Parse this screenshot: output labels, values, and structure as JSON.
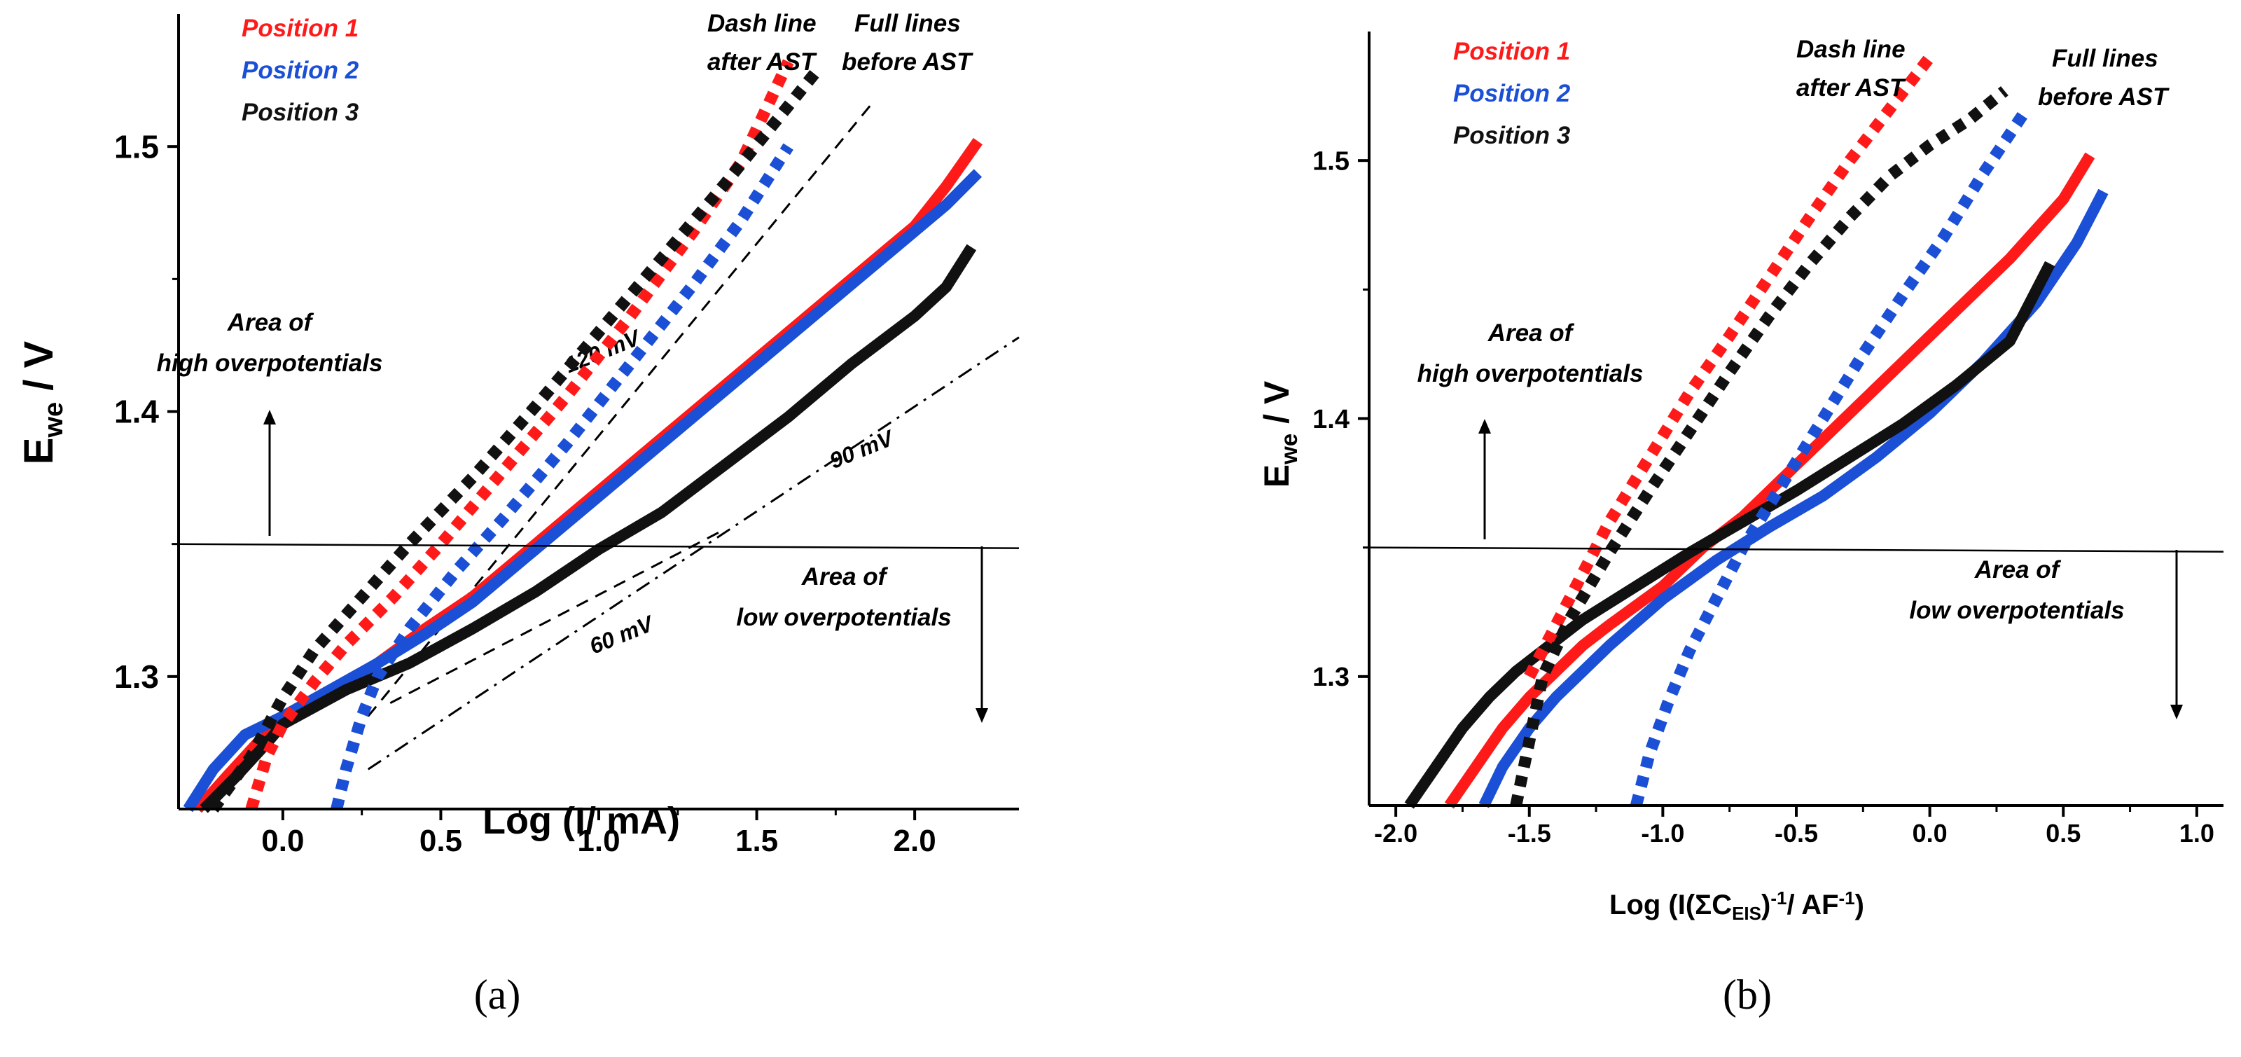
{
  "chart_data": [
    {
      "id": "a",
      "type": "line",
      "caption": "(a)",
      "xlabel": "Log (I/ mA)",
      "ylabel_main": "E",
      "ylabel_sub": "we",
      "ylabel_tail": " / V",
      "xlim": [
        -0.33,
        2.33
      ],
      "ylim": [
        1.25,
        1.55
      ],
      "xticks": [
        0.0,
        0.5,
        1.0,
        1.5,
        2.0
      ],
      "xtick_labels": [
        "0.0",
        "0.5",
        "1.0",
        "1.5",
        "2.0"
      ],
      "yticks": [
        1.3,
        1.4,
        1.5
      ],
      "ytick_labels": [
        "1.3",
        "1.4",
        "1.5"
      ],
      "legend": [
        {
          "label": "Position 1",
          "color": "#ff1a1a"
        },
        {
          "label": "Position 2",
          "color": "#1a4fd6"
        },
        {
          "label": "Position 3",
          "color": "#111111"
        }
      ],
      "notes": {
        "dash_line_1": "Dash line",
        "dash_line_2": "after AST",
        "full_lines_1": "Full lines",
        "full_lines_2": "before AST",
        "high_area_1": "Area of",
        "high_area_2": "high overpotentials",
        "low_area_1": "Area of",
        "low_area_2": "low overpotentials"
      },
      "threshold_E": 1.35,
      "tafel_lines": [
        {
          "label": "120 mV",
          "points": [
            [
              0.27,
              1.285
            ],
            [
              1.87,
              1.517
            ]
          ]
        },
        {
          "label": "90 mV",
          "points": [
            [
              0.27,
              1.265
            ],
            [
              2.33,
              1.428
            ]
          ]
        },
        {
          "label": "60 mV",
          "points": [
            [
              0.34,
              1.29
            ],
            [
              1.39,
              1.355
            ]
          ]
        }
      ],
      "tafel_label_pos": [
        [
          1.02,
          1.42
        ],
        [
          1.84,
          1.383
        ],
        [
          1.08,
          1.313
        ]
      ],
      "series": [
        {
          "name": "Position 1 before AST",
          "color": "#ff1a1a",
          "style": "solid",
          "x": [
            -0.27,
            -0.18,
            -0.08,
            0.0,
            0.1,
            0.2,
            0.3,
            0.45,
            0.6,
            0.8,
            1.0,
            1.2,
            1.4,
            1.6,
            1.8,
            2.0,
            2.1,
            2.2
          ],
          "y": [
            1.25,
            1.262,
            1.275,
            1.282,
            1.29,
            1.298,
            1.305,
            1.318,
            1.33,
            1.35,
            1.37,
            1.39,
            1.41,
            1.43,
            1.45,
            1.47,
            1.485,
            1.502
          ]
        },
        {
          "name": "Position 2 before AST",
          "color": "#1a4fd6",
          "style": "solid",
          "x": [
            -0.3,
            -0.22,
            -0.12,
            0.0,
            0.15,
            0.3,
            0.45,
            0.6,
            0.8,
            1.0,
            1.2,
            1.4,
            1.6,
            1.8,
            2.0,
            2.1,
            2.2
          ],
          "y": [
            1.25,
            1.265,
            1.278,
            1.285,
            1.295,
            1.305,
            1.316,
            1.328,
            1.348,
            1.368,
            1.388,
            1.408,
            1.428,
            1.448,
            1.468,
            1.478,
            1.49
          ]
        },
        {
          "name": "Position 3 before AST",
          "color": "#111111",
          "style": "solid",
          "x": [
            -0.25,
            -0.15,
            -0.05,
            0.0,
            0.2,
            0.4,
            0.6,
            0.8,
            1.0,
            1.2,
            1.4,
            1.6,
            1.8,
            2.0,
            2.1,
            2.18
          ],
          "y": [
            1.25,
            1.262,
            1.275,
            1.282,
            1.295,
            1.305,
            1.318,
            1.332,
            1.348,
            1.362,
            1.38,
            1.398,
            1.418,
            1.436,
            1.447,
            1.462
          ]
        },
        {
          "name": "Position 1 after AST",
          "color": "#ff1a1a",
          "style": "dash",
          "x": [
            -0.1,
            -0.05,
            0.0,
            0.1,
            0.2,
            0.35,
            0.5,
            0.7,
            0.9,
            1.1,
            1.3,
            1.45,
            1.6
          ],
          "y": [
            1.25,
            1.27,
            1.282,
            1.298,
            1.312,
            1.33,
            1.35,
            1.378,
            1.406,
            1.436,
            1.468,
            1.494,
            1.532
          ]
        },
        {
          "name": "Position 2 after AST",
          "color": "#1a4fd6",
          "style": "dash",
          "x": [
            0.17,
            0.2,
            0.25,
            0.3,
            0.4,
            0.55,
            0.7,
            0.9,
            1.1,
            1.3,
            1.45,
            1.6
          ],
          "y": [
            1.25,
            1.265,
            1.285,
            1.3,
            1.318,
            1.34,
            1.36,
            1.388,
            1.418,
            1.448,
            1.472,
            1.5
          ]
        },
        {
          "name": "Position 3 after AST",
          "color": "#111111",
          "style": "dash",
          "x": [
            -0.22,
            -0.1,
            0.0,
            0.1,
            0.25,
            0.4,
            0.6,
            0.8,
            1.0,
            1.2,
            1.4,
            1.55,
            1.7
          ],
          "y": [
            1.25,
            1.27,
            1.292,
            1.31,
            1.33,
            1.35,
            1.375,
            1.402,
            1.43,
            1.458,
            1.486,
            1.508,
            1.53
          ]
        }
      ]
    },
    {
      "id": "b",
      "type": "line",
      "caption": "(b)",
      "xlabel_main": "Log (I(ΣC",
      "xlabel_sub": "EIS",
      "xlabel_mid": ")",
      "xlabel_sup1": "-1",
      "xlabel_mid2": "/ AF",
      "xlabel_sup2": "-1",
      "xlabel_end": ")",
      "ylabel_main": "E",
      "ylabel_sub": "we",
      "ylabel_tail": " / V",
      "xlim": [
        -2.1,
        1.1
      ],
      "ylim": [
        1.25,
        1.55
      ],
      "xticks": [
        -2.0,
        -1.5,
        -1.0,
        -0.5,
        0.0,
        0.5,
        1.0
      ],
      "xtick_labels": [
        "-2.0",
        "-1.5",
        "-1.0",
        "-0.5",
        "0.0",
        "0.5",
        "1.0"
      ],
      "yticks": [
        1.3,
        1.4,
        1.5
      ],
      "ytick_labels": [
        "1.3",
        "1.4",
        "1.5"
      ],
      "legend": [
        {
          "label": "Position 1",
          "color": "#ff1a1a"
        },
        {
          "label": "Position 2",
          "color": "#1a4fd6"
        },
        {
          "label": "Position 3",
          "color": "#111111"
        }
      ],
      "notes": {
        "dash_line_1": "Dash line",
        "dash_line_2": "after AST",
        "full_lines_1": "Full lines",
        "full_lines_2": "before AST",
        "high_area_1": "Area of",
        "high_area_2": "high overpotentials",
        "low_area_1": "Area of",
        "low_area_2": "low overpotentials"
      },
      "threshold_E": 1.35,
      "series": [
        {
          "name": "Position 1 before AST",
          "color": "#ff1a1a",
          "style": "solid",
          "x": [
            -1.8,
            -1.7,
            -1.6,
            -1.5,
            -1.4,
            -1.3,
            -1.2,
            -1.0,
            -0.85,
            -0.7,
            -0.5,
            -0.3,
            -0.1,
            0.1,
            0.3,
            0.5,
            0.6
          ],
          "y": [
            1.25,
            1.265,
            1.28,
            1.292,
            1.302,
            1.312,
            1.32,
            1.335,
            1.35,
            1.362,
            1.382,
            1.402,
            1.422,
            1.442,
            1.462,
            1.485,
            1.502
          ]
        },
        {
          "name": "Position 2 before AST",
          "color": "#1a4fd6",
          "style": "solid",
          "x": [
            -1.67,
            -1.6,
            -1.5,
            -1.4,
            -1.3,
            -1.2,
            -1.0,
            -0.8,
            -0.6,
            -0.4,
            -0.2,
            0.0,
            0.2,
            0.4,
            0.55,
            0.65
          ],
          "y": [
            1.25,
            1.265,
            1.28,
            1.292,
            1.302,
            1.312,
            1.33,
            1.345,
            1.358,
            1.37,
            1.385,
            1.402,
            1.422,
            1.445,
            1.468,
            1.488
          ]
        },
        {
          "name": "Position 3 before AST",
          "color": "#111111",
          "style": "solid",
          "x": [
            -1.95,
            -1.85,
            -1.75,
            -1.65,
            -1.55,
            -1.45,
            -1.3,
            -1.1,
            -0.9,
            -0.7,
            -0.5,
            -0.3,
            -0.1,
            0.1,
            0.3,
            0.45
          ],
          "y": [
            1.25,
            1.265,
            1.28,
            1.292,
            1.302,
            1.31,
            1.322,
            1.335,
            1.348,
            1.36,
            1.372,
            1.385,
            1.398,
            1.413,
            1.43,
            1.46
          ]
        },
        {
          "name": "Position 1 after AST",
          "color": "#ff1a1a",
          "style": "dash",
          "x": [
            -1.5,
            -1.35,
            -1.2,
            -1.05,
            -0.9,
            -0.75,
            -0.6,
            -0.45,
            -0.3,
            -0.15,
            0.0
          ],
          "y": [
            1.3,
            1.33,
            1.36,
            1.385,
            1.41,
            1.432,
            1.455,
            1.478,
            1.5,
            1.52,
            1.54
          ]
        },
        {
          "name": "Position 2 after AST",
          "color": "#1a4fd6",
          "style": "dash",
          "x": [
            -1.1,
            -1.05,
            -0.98,
            -0.9,
            -0.8,
            -0.7,
            -0.55,
            -0.4,
            -0.25,
            -0.1,
            0.05,
            0.2,
            0.35
          ],
          "y": [
            1.25,
            1.27,
            1.29,
            1.31,
            1.33,
            1.35,
            1.375,
            1.4,
            1.425,
            1.448,
            1.47,
            1.495,
            1.518
          ]
        },
        {
          "name": "Position 3 after AST",
          "color": "#111111",
          "style": "dash",
          "x": [
            -1.55,
            -1.5,
            -1.45,
            -1.35,
            -1.2,
            -1.05,
            -0.9,
            -0.75,
            -0.6,
            -0.45,
            -0.3,
            -0.15,
            0.0,
            0.15,
            0.28
          ],
          "y": [
            1.25,
            1.275,
            1.3,
            1.322,
            1.348,
            1.372,
            1.395,
            1.418,
            1.44,
            1.46,
            1.478,
            1.494,
            1.506,
            1.516,
            1.527
          ]
        }
      ]
    }
  ]
}
